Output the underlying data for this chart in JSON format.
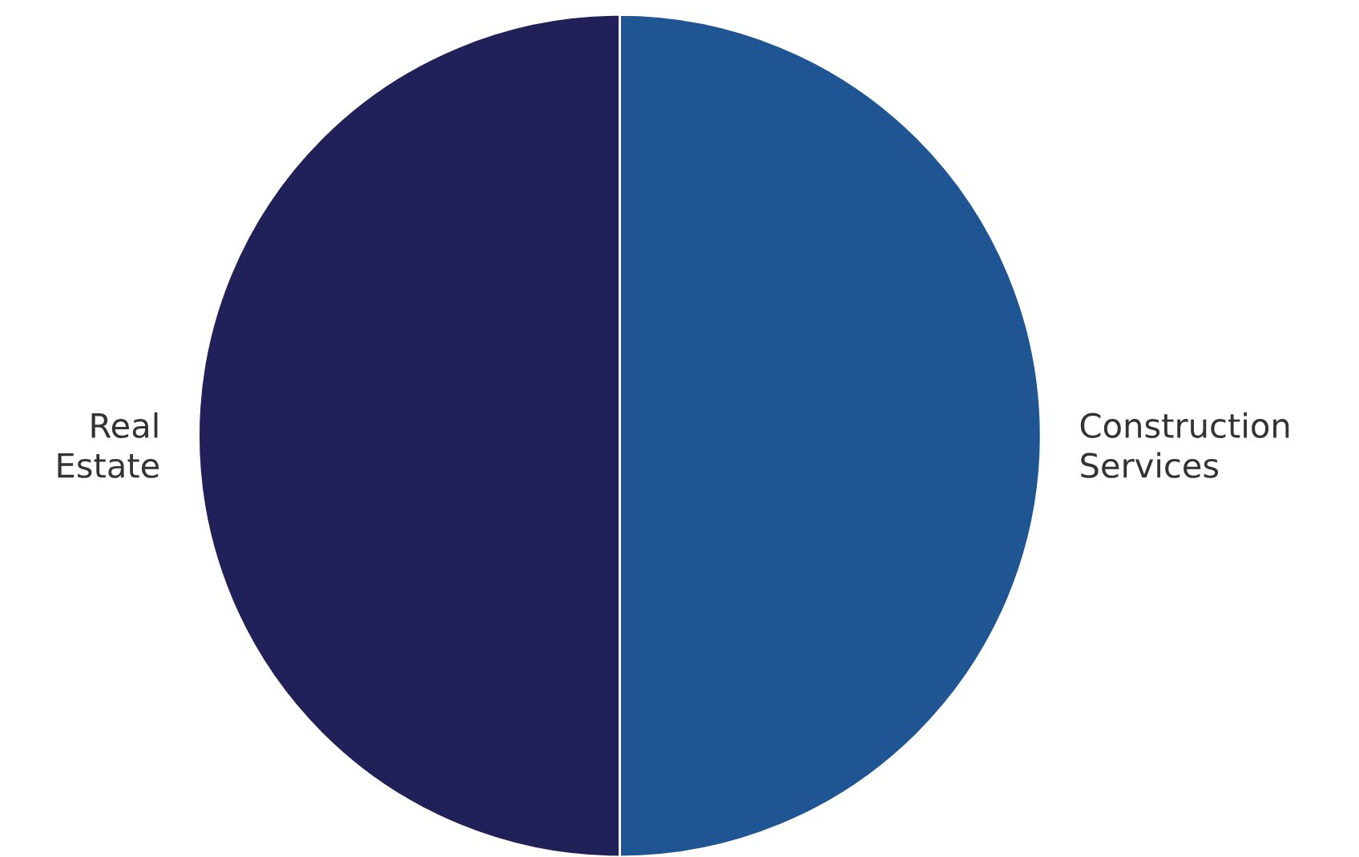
{
  "chart_data": {
    "type": "pie",
    "categories": [
      "Construction\nServices",
      "Real\nEstate"
    ],
    "values": [
      50,
      50
    ],
    "colors": [
      "#1f5592",
      "#212058"
    ]
  }
}
